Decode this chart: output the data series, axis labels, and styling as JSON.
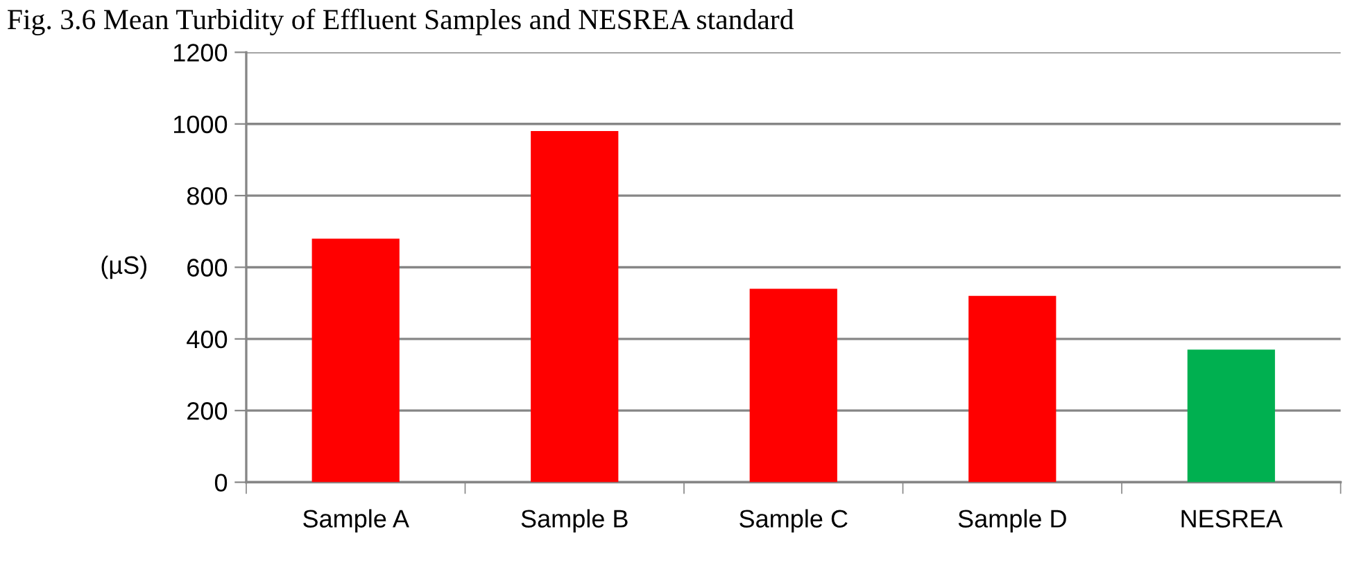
{
  "chart_data": {
    "type": "bar",
    "title": "Fig. 3.6 Mean Turbidity of Effluent Samples and NESREA standard",
    "ylabel": "(µS)",
    "categories": [
      "Sample A",
      "Sample B",
      "Sample C",
      "Sample D",
      "NESREA"
    ],
    "values": [
      680,
      980,
      540,
      520,
      370
    ],
    "colors": [
      "#ff0000",
      "#ff0000",
      "#ff0000",
      "#ff0000",
      "#00b050"
    ],
    "ylim": [
      0,
      1200
    ],
    "yticks": [
      0,
      200,
      400,
      600,
      800,
      1000,
      1200
    ],
    "grid": "y"
  }
}
